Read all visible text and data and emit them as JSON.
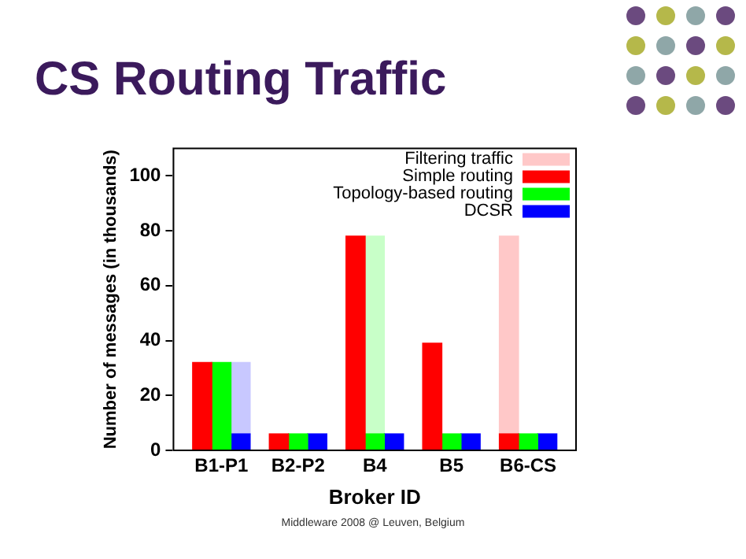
{
  "chart_data": {
    "type": "bar",
    "title": "CS Routing Traffic",
    "xlabel": "Broker ID",
    "ylabel": "Number of messages (in thousands)",
    "categories": [
      null,
      null,
      "B1-P1",
      null,
      null,
      null,
      "B2-P2",
      null,
      null,
      null,
      "B4",
      null,
      null,
      null,
      "B5",
      null,
      null,
      null,
      "B6-CS",
      null,
      null
    ],
    "stacked": true,
    "series": [
      {
        "name": "Simple routing",
        "color": "#ff0000",
        "values": [
          null,
          32,
          null,
          null,
          null,
          6,
          null,
          null,
          null,
          78,
          null,
          null,
          null,
          39,
          null,
          null,
          null,
          6,
          null,
          null,
          null
        ]
      },
      {
        "name": "Topology-based routing",
        "color": "#00ff00",
        "values": [
          null,
          null,
          32,
          null,
          null,
          null,
          6,
          null,
          null,
          null,
          6,
          null,
          null,
          null,
          6,
          null,
          null,
          null,
          6,
          null,
          null
        ]
      },
      {
        "name": "DCSR",
        "color": "#0000ff",
        "values": [
          null,
          null,
          null,
          6,
          null,
          null,
          null,
          6,
          null,
          null,
          null,
          6,
          null,
          null,
          null,
          6,
          null,
          null,
          null,
          6,
          null
        ]
      },
      {
        "name": "Filtering traffic",
        "color": "#ffc8c8",
        "values": [
          null,
          null,
          null,
          26,
          null,
          null,
          null,
          null,
          null,
          null,
          72,
          null,
          null,
          null,
          null,
          null,
          null,
          72,
          null,
          null,
          null
        ],
        "colors": [
          null,
          null,
          null,
          "#c8c8ff",
          null,
          null,
          null,
          null,
          null,
          null,
          "#c8ffc8",
          null,
          null,
          null,
          null,
          null,
          null,
          "#ffc8c8",
          null,
          null,
          null
        ]
      }
    ],
    "ylim": [
      0,
      110
    ],
    "yticks": [
      0,
      20,
      40,
      60,
      80,
      100
    ],
    "legend": "top right",
    "annotations": [
      "Middleware 2008 @ Leuven, Belgium"
    ]
  }
}
